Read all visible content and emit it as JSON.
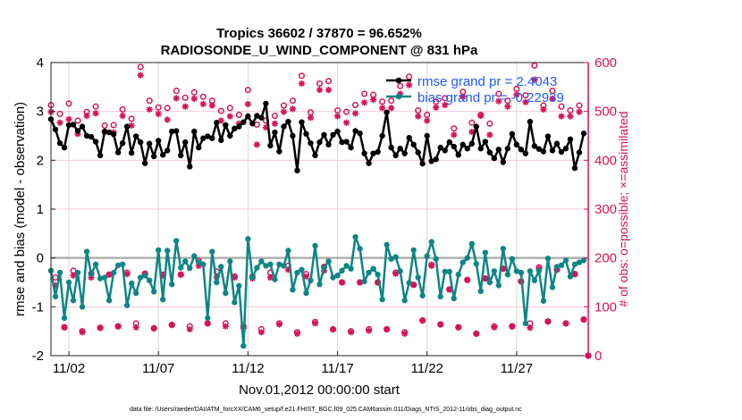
{
  "title_line1": "Tropics 36602 / 37870 = 96.652%",
  "title_line2": "RADIOSONDE_U_WIND_COMPONENT @ 831 hPa",
  "footer": "data file: /Users/raeder/DAI/ATM_forcXX/CAM6_setup/f.e21.FHIST_BGC.f09_025.CAM6assim.011/Diags_NTrS_2012-11/obs_diag_output.nc",
  "chart_data": {
    "type": "line",
    "xlabel": "Nov.01,2012 00:00:00 start",
    "ylabel": "rmse and bias (model - observation)",
    "ylabel_right": "# of obs: o=possible; ×=assimilated",
    "ylim": [
      -2,
      4
    ],
    "ylim_right": [
      0,
      600
    ],
    "xlim": [
      "11/01 00:00",
      "12/01 00:00"
    ],
    "yticks": [
      "4",
      "3",
      "2",
      "1",
      "0",
      "-1",
      "-2"
    ],
    "yticks_right": [
      "600",
      "500",
      "400",
      "300",
      "200",
      "100",
      "0"
    ],
    "xticks": [
      {
        "at": "11/02 00:00",
        "label": "11/02"
      },
      {
        "at": "11/07 00:00",
        "label": "11/07"
      },
      {
        "at": "11/12 00:00",
        "label": "11/12"
      },
      {
        "at": "11/17 00:00",
        "label": "11/17"
      },
      {
        "at": "11/22 00:00",
        "label": "11/22"
      },
      {
        "at": "11/27 00:00",
        "label": "11/27"
      }
    ],
    "grid": true,
    "legend_position": "top-right",
    "colors": {
      "rmse": "#000000",
      "bias": "#0f8585",
      "obs": "#d4145a",
      "legend_text": "#1f5bff",
      "zero_line": "#b0b0b0"
    },
    "x": [
      "11/01 00:00",
      "11/01 06:00",
      "11/01 12:00",
      "11/01 18:00",
      "11/02 00:00",
      "11/02 06:00",
      "11/02 12:00",
      "11/02 18:00",
      "11/03 00:00",
      "11/03 06:00",
      "11/03 12:00",
      "11/03 18:00",
      "11/04 00:00",
      "11/04 06:00",
      "11/04 12:00",
      "11/04 18:00",
      "11/05 00:00",
      "11/05 06:00",
      "11/05 12:00",
      "11/05 18:00",
      "11/06 00:00",
      "11/06 06:00",
      "11/06 12:00",
      "11/06 18:00",
      "11/07 00:00",
      "11/07 06:00",
      "11/07 12:00",
      "11/07 18:00",
      "11/08 00:00",
      "11/08 06:00",
      "11/08 12:00",
      "11/08 18:00",
      "11/09 00:00",
      "11/09 06:00",
      "11/09 12:00",
      "11/09 18:00",
      "11/10 00:00",
      "11/10 06:00",
      "11/10 12:00",
      "11/10 18:00",
      "11/11 00:00",
      "11/11 06:00",
      "11/11 12:00",
      "11/11 18:00",
      "11/12 00:00",
      "11/12 06:00",
      "11/12 12:00",
      "11/12 18:00",
      "11/13 00:00",
      "11/13 06:00",
      "11/13 12:00",
      "11/13 18:00",
      "11/14 00:00",
      "11/14 06:00",
      "11/14 12:00",
      "11/14 18:00",
      "11/15 00:00",
      "11/15 06:00",
      "11/15 12:00",
      "11/15 18:00",
      "11/16 00:00",
      "11/16 06:00",
      "11/16 12:00",
      "11/16 18:00",
      "11/17 00:00",
      "11/17 06:00",
      "11/17 12:00",
      "11/17 18:00",
      "11/18 00:00",
      "11/18 06:00",
      "11/18 12:00",
      "11/18 18:00",
      "11/19 00:00",
      "11/19 06:00",
      "11/19 12:00",
      "11/19 18:00",
      "11/20 00:00",
      "11/20 06:00",
      "11/20 12:00",
      "11/20 18:00",
      "11/21 00:00",
      "11/21 06:00",
      "11/21 12:00",
      "11/21 18:00",
      "11/22 00:00",
      "11/22 06:00",
      "11/22 12:00",
      "11/22 18:00",
      "11/23 00:00",
      "11/23 06:00",
      "11/23 12:00",
      "11/23 18:00",
      "11/24 00:00",
      "11/24 06:00",
      "11/24 12:00",
      "11/24 18:00",
      "11/25 00:00",
      "11/25 06:00",
      "11/25 12:00",
      "11/25 18:00",
      "11/26 00:00",
      "11/26 06:00",
      "11/26 12:00",
      "11/26 18:00",
      "11/27 00:00",
      "11/27 06:00",
      "11/27 12:00",
      "11/27 18:00",
      "11/28 00:00",
      "11/28 06:00",
      "11/28 12:00",
      "11/28 18:00",
      "11/29 00:00",
      "11/29 06:00",
      "11/29 12:00",
      "11/29 18:00",
      "11/30 00:00",
      "11/30 06:00",
      "11/30 12:00",
      "11/30 18:00",
      "12/01 00:00"
    ],
    "series": [
      {
        "name": "rmse grand pr = 2.4043",
        "axis": "left",
        "values": [
          2.84,
          2.63,
          2.35,
          2.26,
          2.72,
          2.73,
          2.6,
          2.69,
          2.5,
          2.48,
          2.38,
          2.1,
          2.59,
          2.57,
          2.53,
          2.16,
          2.35,
          2.69,
          2.15,
          2.49,
          2.37,
          1.94,
          2.34,
          2.08,
          2.4,
          2.11,
          2.2,
          2.59,
          2.6,
          2.1,
          2.37,
          1.87,
          2.59,
          2.26,
          2.45,
          2.49,
          2.45,
          2.77,
          2.41,
          2.72,
          2.5,
          2.65,
          2.69,
          2.78,
          2.9,
          2.75,
          2.91,
          2.87,
          3.16,
          2.3,
          2.57,
          2.18,
          2.69,
          2.79,
          2.5,
          1.79,
          2.78,
          2.54,
          2.35,
          2.1,
          2.37,
          2.52,
          2.32,
          2.52,
          2.59,
          2.37,
          2.38,
          2.26,
          2.6,
          2.55,
          2.14,
          1.94,
          2.14,
          2.17,
          2.5,
          2.98,
          2.26,
          2.1,
          2.24,
          2.14,
          2.46,
          2.32,
          2.16,
          1.93,
          2.5,
          1.98,
          2.02,
          2.26,
          2.2,
          2.37,
          2.28,
          2.11,
          2.32,
          2.24,
          2.34,
          2.69,
          2.24,
          2.38,
          2.16,
          2.04,
          2.22,
          1.96,
          2.24,
          2.54,
          2.32,
          2.22,
          2.14,
          2.79,
          2.29,
          2.23,
          2.18,
          2.49,
          2.2,
          2.34,
          2.17,
          2.24,
          2.43,
          1.84,
          2.16,
          2.55,
          null
        ]
      },
      {
        "name": "bias grand pr = -0.22939",
        "axis": "left",
        "values": [
          -0.26,
          -0.79,
          -0.3,
          -1.23,
          -0.5,
          -0.87,
          -0.3,
          -1.0,
          0.13,
          -0.33,
          -0.13,
          -0.42,
          -0.4,
          -0.87,
          -0.3,
          -0.15,
          -0.13,
          -0.97,
          -0.52,
          -0.72,
          -0.4,
          -0.36,
          -0.46,
          -0.69,
          0.16,
          -0.85,
          0.15,
          -0.54,
          0.35,
          -0.2,
          -0.07,
          -0.21,
          0.04,
          -0.09,
          -0.13,
          -1.23,
          0.13,
          -0.5,
          -0.18,
          -0.72,
          -0.07,
          -0.91,
          -0.57,
          -1.8,
          0.39,
          -0.4,
          -0.2,
          -0.07,
          -0.16,
          -0.13,
          -0.44,
          -0.13,
          -0.16,
          0.15,
          -0.65,
          -0.3,
          -0.24,
          -0.72,
          -0.46,
          0.25,
          -0.54,
          -0.2,
          -0.07,
          -0.4,
          -0.36,
          -0.26,
          -0.16,
          -0.22,
          0.43,
          0.19,
          -0.48,
          -0.3,
          -0.22,
          -0.34,
          -0.85,
          0.27,
          -0.02,
          0.02,
          -0.27,
          -0.87,
          -0.51,
          0.16,
          -0.4,
          -0.77,
          0.04,
          0.33,
          -0.02,
          -0.79,
          -0.28,
          -0.28,
          -0.83,
          -0.34,
          -0.09,
          0.0,
          0.29,
          -0.12,
          -0.68,
          0.11,
          -0.5,
          -0.27,
          -0.56,
          0.19,
          -0.34,
          -0.02,
          -0.27,
          -0.3,
          -1.34,
          -0.27,
          -0.46,
          -0.26,
          -0.88,
          -0.01,
          -0.6,
          -0.18,
          -0.15,
          -0.05,
          -0.38,
          -0.13,
          -0.09,
          -0.05,
          null
        ]
      },
      {
        "name": "possible",
        "axis": "right",
        "marker": "o",
        "values": [
          513,
          160,
          495,
          58,
          516,
          174,
          481,
          50,
          499,
          168,
          510,
          57,
          471,
          166,
          472,
          60,
          504,
          170,
          485,
          66,
          591,
          168,
          522,
          56,
          508,
          166,
          507,
          63,
          542,
          166,
          528,
          60,
          539,
          194,
          530,
          66,
          522,
          172,
          501,
          66,
          507,
          162,
          493,
          60,
          544,
          162,
          473,
          54,
          481,
          170,
          491,
          66,
          512,
          184,
          522,
          48,
          573,
          167,
          498,
          69,
          557,
          182,
          562,
          54,
          502,
          150,
          499,
          50,
          513,
          150,
          536,
          54,
          534,
          150,
          520,
          54,
          522,
          170,
          552,
          48,
          571,
          145,
          502,
          72,
          493,
          186,
          520,
          64,
          527,
          136,
          465,
          58,
          540,
          155,
          477,
          45,
          493,
          158,
          475,
          60,
          536,
          178,
          522,
          60,
          546,
          152,
          533,
          66,
          594,
          181,
          512,
          70,
          542,
          176,
          510,
          66,
          502,
          167,
          512,
          74,
          0
        ]
      },
      {
        "name": "assimilated",
        "axis": "right",
        "marker": "*",
        "values": [
          499,
          144,
          477,
          58,
          484,
          164,
          454,
          48,
          491,
          160,
          496,
          57,
          458,
          166,
          457,
          60,
          491,
          167,
          471,
          58,
          574,
          167,
          504,
          56,
          495,
          164,
          483,
          63,
          527,
          166,
          510,
          54,
          526,
          184,
          515,
          66,
          512,
          161,
          481,
          60,
          490,
          160,
          475,
          56,
          515,
          158,
          432,
          48,
          467,
          160,
          475,
          64,
          499,
          176,
          505,
          45,
          557,
          162,
          487,
          66,
          544,
          174,
          544,
          54,
          490,
          150,
          477,
          48,
          496,
          150,
          518,
          51,
          524,
          150,
          507,
          54,
          507,
          168,
          536,
          45,
          554,
          145,
          490,
          72,
          481,
          184,
          508,
          64,
          513,
          135,
          452,
          58,
          530,
          155,
          458,
          45,
          491,
          158,
          452,
          58,
          521,
          178,
          510,
          60,
          534,
          152,
          519,
          57,
          565,
          178,
          504,
          70,
          526,
          176,
          490,
          66,
          490,
          167,
          499,
          74,
          0
        ]
      }
    ]
  }
}
